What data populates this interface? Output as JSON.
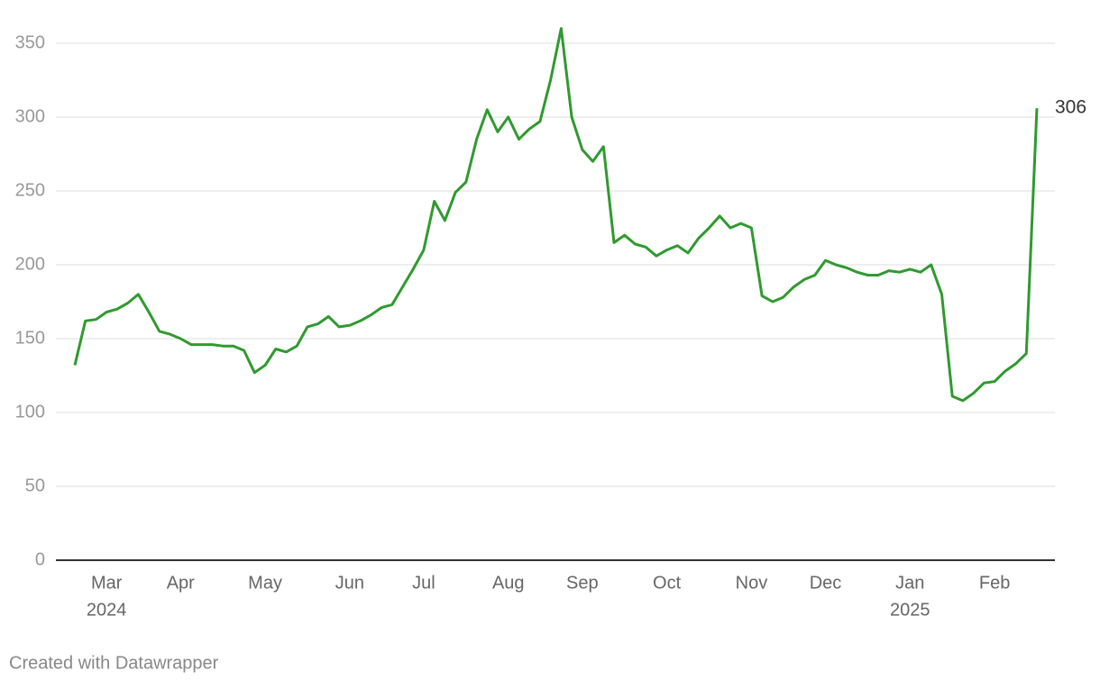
{
  "chart_data": {
    "type": "line",
    "categories": [
      null,
      null,
      null,
      "Mar",
      null,
      null,
      null,
      null,
      null,
      null,
      "Apr",
      null,
      null,
      null,
      null,
      null,
      null,
      null,
      "May",
      null,
      null,
      null,
      null,
      null,
      null,
      null,
      "Jun",
      null,
      null,
      null,
      null,
      null,
      null,
      "Jul",
      null,
      null,
      null,
      null,
      null,
      null,
      null,
      "Aug",
      null,
      null,
      null,
      null,
      null,
      null,
      "Sep",
      null,
      null,
      null,
      null,
      null,
      null,
      null,
      "Oct",
      null,
      null,
      null,
      null,
      null,
      null,
      null,
      "Nov",
      null,
      null,
      null,
      null,
      null,
      null,
      "Dec",
      null,
      null,
      null,
      null,
      null,
      null,
      null,
      "Jan",
      null,
      null,
      null,
      null,
      null,
      null,
      null,
      "Feb",
      null,
      null,
      null,
      null
    ],
    "category_years": [
      null,
      null,
      null,
      "2024",
      null,
      null,
      null,
      null,
      null,
      null,
      null,
      null,
      null,
      null,
      null,
      null,
      null,
      null,
      null,
      null,
      null,
      null,
      null,
      null,
      null,
      null,
      null,
      null,
      null,
      null,
      null,
      null,
      null,
      null,
      null,
      null,
      null,
      null,
      null,
      null,
      null,
      null,
      null,
      null,
      null,
      null,
      null,
      null,
      null,
      null,
      null,
      null,
      null,
      null,
      null,
      null,
      null,
      null,
      null,
      null,
      null,
      null,
      null,
      null,
      null,
      null,
      null,
      null,
      null,
      null,
      null,
      null,
      null,
      null,
      null,
      null,
      null,
      null,
      null,
      "2025",
      null,
      null,
      null,
      null,
      null,
      null,
      null,
      null,
      null,
      null,
      null,
      null
    ],
    "values": [
      132,
      162,
      163,
      168,
      170,
      174,
      180,
      168,
      155,
      153,
      150,
      146,
      146,
      146,
      145,
      145,
      142,
      127,
      132,
      143,
      141,
      145,
      158,
      160,
      165,
      158,
      159,
      162,
      166,
      171,
      173,
      185,
      197,
      210,
      243,
      230,
      249,
      256,
      285,
      305,
      290,
      300,
      285,
      292,
      297,
      325,
      360,
      300,
      278,
      270,
      280,
      215,
      220,
      214,
      212,
      206,
      210,
      213,
      208,
      218,
      225,
      233,
      225,
      228,
      225,
      179,
      175,
      178,
      185,
      190,
      193,
      203,
      200,
      198,
      195,
      193,
      193,
      196,
      195,
      197,
      195,
      200,
      180,
      111,
      108,
      113,
      120,
      121,
      128,
      133,
      140,
      306
    ],
    "color": "#2f9a2f",
    "ylim": [
      0,
      350
    ],
    "yticks": [
      0,
      50,
      100,
      150,
      200,
      250,
      300,
      350
    ],
    "grid": true,
    "source": "Created with Datawrapper"
  }
}
